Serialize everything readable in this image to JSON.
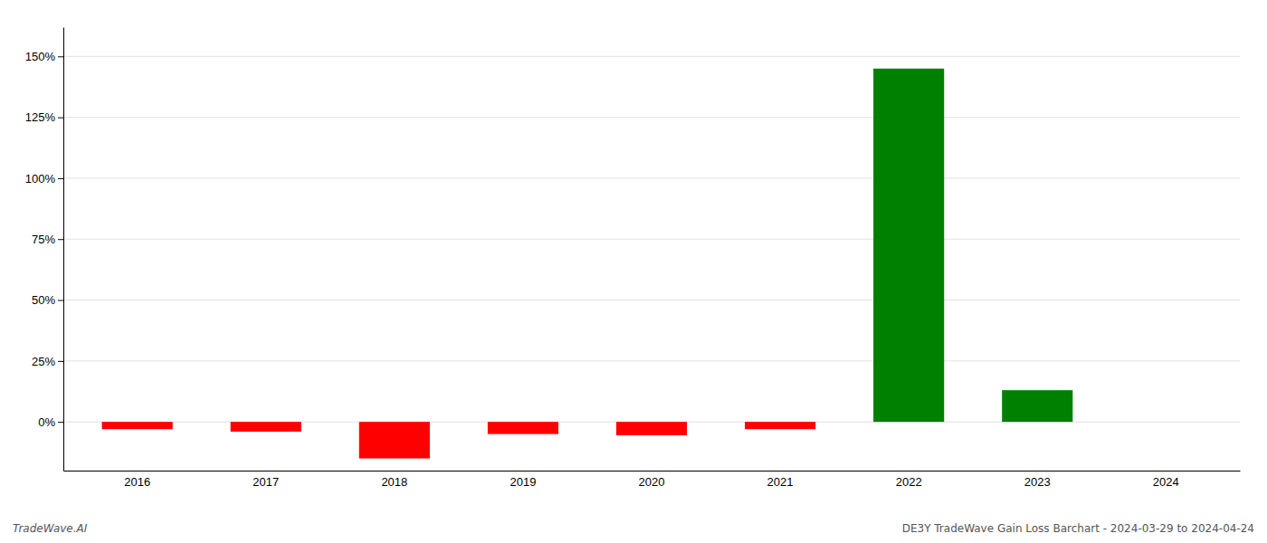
{
  "chart_data": {
    "type": "bar",
    "categories": [
      "2016",
      "2017",
      "2018",
      "2019",
      "2020",
      "2021",
      "2022",
      "2023",
      "2024"
    ],
    "values": [
      -3.0,
      -4.0,
      -15.0,
      -5.0,
      -5.5,
      -3.0,
      145.0,
      13.0,
      0.0
    ],
    "colors": [
      "red",
      "red",
      "red",
      "red",
      "red",
      "red",
      "green",
      "green",
      "green"
    ],
    "ylim": [
      -20,
      162
    ],
    "yticks": [
      {
        "value": 0,
        "label": "0%"
      },
      {
        "value": 25,
        "label": "25%"
      },
      {
        "value": 50,
        "label": "50%"
      },
      {
        "value": 75,
        "label": "75%"
      },
      {
        "value": 100,
        "label": "100%"
      },
      {
        "value": 125,
        "label": "125%"
      },
      {
        "value": 150,
        "label": "150%"
      }
    ],
    "grid": true,
    "annotations": [
      "TradeWave.AI",
      "DE3Y TradeWave Gain Loss Barchart - 2024-03-29 to 2024-04-24"
    ]
  }
}
